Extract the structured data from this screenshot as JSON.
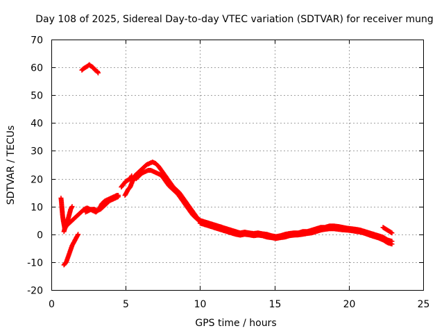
{
  "chart_data": {
    "type": "scatter",
    "title": "Day 108 of 2025, Sidereal Day-to-day VTEC variation (SDTVAR) for receiver mung",
    "xlabel": "GPS time / hours",
    "ylabel": "SDTVAR / TECUs",
    "xlim": [
      0,
      25
    ],
    "ylim": [
      -20,
      70
    ],
    "xticks": [
      "0",
      "5",
      "10",
      "15",
      "20",
      "25"
    ],
    "yticks": [
      "-20",
      "-10",
      "0",
      "10",
      "20",
      "30",
      "40",
      "50",
      "60",
      "70"
    ],
    "grid": true,
    "marker": "+",
    "color": "#ff0000",
    "series": [
      {
        "name": "SDTVAR",
        "segments": [
          [
            [
              0.65,
              13
            ],
            [
              0.68,
              11.5
            ],
            [
              0.72,
              9
            ],
            [
              0.75,
              7
            ],
            [
              0.8,
              5
            ],
            [
              0.85,
              3.5
            ],
            [
              0.9,
              2
            ],
            [
              1.0,
              3
            ],
            [
              1.1,
              5
            ],
            [
              1.2,
              7
            ],
            [
              1.3,
              9
            ],
            [
              1.4,
              10
            ]
          ],
          [
            [
              0.85,
              1
            ],
            [
              0.9,
              2
            ],
            [
              1.0,
              3
            ],
            [
              1.2,
              4
            ],
            [
              1.4,
              5
            ],
            [
              1.6,
              6
            ],
            [
              1.8,
              7
            ],
            [
              2.0,
              8
            ],
            [
              2.2,
              9
            ],
            [
              2.4,
              9.5
            ],
            [
              2.6,
              9
            ],
            [
              2.8,
              8.5
            ],
            [
              3.0,
              8
            ],
            [
              3.2,
              9
            ],
            [
              3.4,
              11
            ],
            [
              3.6,
              12
            ],
            [
              3.8,
              12.5
            ],
            [
              4.0,
              13
            ],
            [
              4.2,
              13.5
            ],
            [
              4.4,
              14
            ],
            [
              4.5,
              14
            ]
          ],
          [
            [
              2.3,
              8
            ],
            [
              2.5,
              8.5
            ],
            [
              2.7,
              9
            ],
            [
              2.9,
              9
            ],
            [
              3.1,
              8.5
            ],
            [
              3.3,
              9
            ],
            [
              3.5,
              10
            ],
            [
              3.7,
              11
            ],
            [
              3.9,
              12
            ],
            [
              4.1,
              12.5
            ],
            [
              4.3,
              13
            ],
            [
              4.5,
              13.5
            ]
          ],
          [
            [
              0.85,
              -11
            ],
            [
              1.0,
              -10
            ],
            [
              1.1,
              -8.5
            ],
            [
              1.2,
              -7
            ],
            [
              1.3,
              -5.5
            ],
            [
              1.4,
              -4
            ],
            [
              1.5,
              -3
            ],
            [
              1.6,
              -2
            ],
            [
              1.7,
              -1
            ],
            [
              1.8,
              0
            ]
          ],
          [
            [
              2.05,
              59
            ],
            [
              2.15,
              59.5
            ],
            [
              2.3,
              60
            ],
            [
              2.45,
              60.5
            ],
            [
              2.55,
              61
            ],
            [
              2.65,
              60.5
            ],
            [
              2.8,
              60
            ],
            [
              2.95,
              59
            ],
            [
              3.1,
              58.5
            ],
            [
              3.15,
              58
            ]
          ],
          [
            [
              4.7,
              17
            ],
            [
              4.85,
              18
            ],
            [
              5.0,
              19
            ],
            [
              5.15,
              19.5
            ],
            [
              5.3,
              20
            ],
            [
              5.4,
              21
            ]
          ],
          [
            [
              4.95,
              14
            ],
            [
              5.05,
              15
            ],
            [
              5.15,
              16
            ],
            [
              5.3,
              17
            ],
            [
              5.45,
              19
            ],
            [
              5.6,
              20.5
            ],
            [
              5.8,
              21.5
            ]
          ],
          [
            [
              5.6,
              21
            ],
            [
              5.8,
              22
            ],
            [
              6.0,
              23
            ],
            [
              6.2,
              24
            ],
            [
              6.4,
              25
            ],
            [
              6.6,
              25.5
            ],
            [
              6.8,
              26
            ],
            [
              7.0,
              25.5
            ],
            [
              7.2,
              24.5
            ],
            [
              7.4,
              23
            ],
            [
              7.6,
              21.5
            ],
            [
              7.8,
              20
            ],
            [
              8.0,
              18.5
            ],
            [
              8.2,
              17
            ],
            [
              8.4,
              16
            ],
            [
              8.6,
              15
            ],
            [
              8.8,
              13.5
            ],
            [
              9.0,
              12
            ],
            [
              9.2,
              10.5
            ],
            [
              9.4,
              9
            ],
            [
              9.6,
              7.5
            ],
            [
              9.8,
              6
            ],
            [
              10.0,
              5
            ]
          ],
          [
            [
              5.7,
              20
            ],
            [
              5.9,
              21
            ],
            [
              6.1,
              22
            ],
            [
              6.3,
              22.5
            ],
            [
              6.5,
              23
            ],
            [
              6.7,
              23
            ],
            [
              6.9,
              22.5
            ],
            [
              7.1,
              22
            ],
            [
              7.3,
              21.5
            ],
            [
              7.5,
              20.5
            ],
            [
              7.7,
              19
            ],
            [
              7.9,
              17.5
            ],
            [
              8.1,
              16.5
            ],
            [
              8.3,
              15.5
            ],
            [
              8.5,
              14.5
            ],
            [
              8.7,
              13
            ],
            [
              8.9,
              11.5
            ],
            [
              9.1,
              10
            ],
            [
              9.3,
              8.5
            ],
            [
              9.5,
              7
            ],
            [
              9.7,
              6
            ],
            [
              9.9,
              5
            ],
            [
              10.1,
              4.5
            ]
          ],
          [
            [
              10.0,
              5
            ],
            [
              10.3,
              4.5
            ],
            [
              10.6,
              4
            ],
            [
              10.9,
              3.5
            ],
            [
              11.2,
              3
            ],
            [
              11.5,
              2.5
            ],
            [
              11.8,
              2
            ],
            [
              12.1,
              1.5
            ],
            [
              12.4,
              1
            ],
            [
              12.7,
              0.5
            ],
            [
              13.0,
              0.8
            ],
            [
              13.3,
              0.5
            ],
            [
              13.6,
              0.3
            ],
            [
              13.9,
              0.5
            ],
            [
              14.2,
              0.2
            ],
            [
              14.5,
              0
            ],
            [
              14.8,
              -0.5
            ],
            [
              15.1,
              -0.8
            ],
            [
              15.4,
              -0.5
            ],
            [
              15.7,
              0
            ],
            [
              16.0,
              0.3
            ],
            [
              16.3,
              0.5
            ],
            [
              16.6,
              0.5
            ],
            [
              16.9,
              1
            ],
            [
              17.2,
              1
            ],
            [
              17.5,
              1.5
            ],
            [
              17.8,
              2
            ],
            [
              18.1,
              2.5
            ],
            [
              18.4,
              2.5
            ],
            [
              18.7,
              3
            ],
            [
              19.0,
              3
            ],
            [
              19.3,
              2.8
            ],
            [
              19.6,
              2.5
            ],
            [
              19.9,
              2.2
            ],
            [
              20.2,
              2
            ],
            [
              20.5,
              1.8
            ],
            [
              20.8,
              1.5
            ],
            [
              21.1,
              1
            ],
            [
              21.4,
              0.5
            ],
            [
              21.7,
              0
            ],
            [
              22.0,
              -0.5
            ],
            [
              22.3,
              -1
            ],
            [
              22.6,
              -2
            ],
            [
              22.9,
              -2.5
            ]
          ],
          [
            [
              10.0,
              4
            ],
            [
              10.3,
              3.5
            ],
            [
              10.6,
              3
            ],
            [
              10.9,
              2.5
            ],
            [
              11.2,
              2
            ],
            [
              11.5,
              1.5
            ],
            [
              11.8,
              1
            ],
            [
              12.1,
              0.5
            ],
            [
              12.4,
              0
            ],
            [
              12.7,
              -0.3
            ],
            [
              13.0,
              0
            ],
            [
              13.3,
              -0.2
            ],
            [
              13.6,
              -0.5
            ],
            [
              13.9,
              -0.3
            ],
            [
              14.2,
              -0.5
            ],
            [
              14.5,
              -1
            ],
            [
              14.8,
              -1.2
            ],
            [
              15.1,
              -1.5
            ],
            [
              15.4,
              -1.2
            ],
            [
              15.7,
              -1
            ],
            [
              16.0,
              -0.5
            ],
            [
              16.3,
              -0.3
            ],
            [
              16.6,
              -0.2
            ],
            [
              16.9,
              0
            ],
            [
              17.2,
              0.3
            ],
            [
              17.5,
              0.5
            ],
            [
              17.8,
              1
            ],
            [
              18.1,
              1.5
            ],
            [
              18.4,
              1.8
            ],
            [
              18.7,
              2
            ],
            [
              19.0,
              2
            ],
            [
              19.3,
              1.8
            ],
            [
              19.6,
              1.6
            ],
            [
              19.9,
              1.5
            ],
            [
              20.2,
              1.3
            ],
            [
              20.5,
              1
            ],
            [
              20.8,
              0.8
            ],
            [
              21.1,
              0.3
            ],
            [
              21.4,
              -0.3
            ],
            [
              21.7,
              -0.8
            ],
            [
              22.0,
              -1.3
            ],
            [
              22.3,
              -2
            ],
            [
              22.6,
              -3
            ],
            [
              22.9,
              -3.5
            ]
          ],
          [
            [
              22.3,
              2.5
            ],
            [
              22.45,
              2
            ],
            [
              22.6,
              1.5
            ],
            [
              22.75,
              1
            ],
            [
              22.9,
              0.5
            ]
          ]
        ]
      }
    ]
  }
}
